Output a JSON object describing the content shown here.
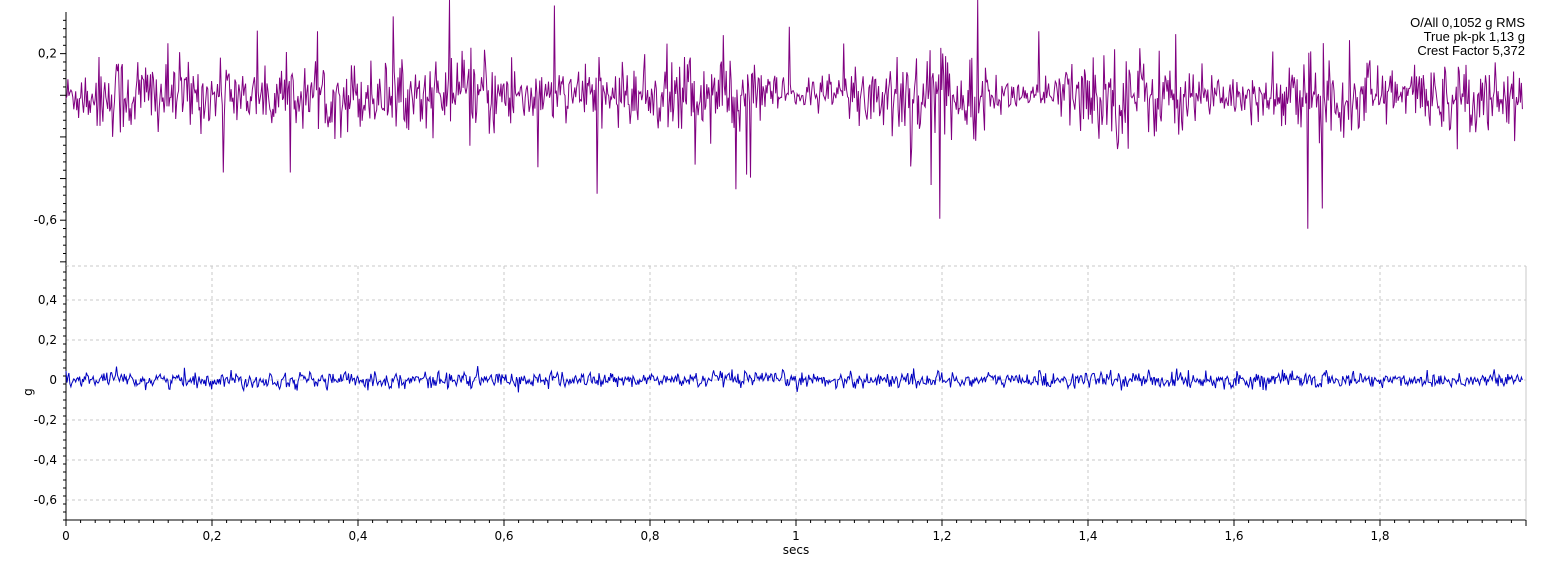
{
  "stats": {
    "overall": "O/All 0,1052 g RMS",
    "peak_to_peak": "True pk-pk 1,13 g",
    "crest_factor": "Crest Factor 5,372"
  },
  "chart_data": [
    {
      "type": "line",
      "panel": "top",
      "title": "",
      "xlabel": "",
      "ylabel": "",
      "ylim": [
        -0.82,
        0.4
      ],
      "yticks": [
        0.2,
        -0.6
      ],
      "ytick_labels": [
        "0,2",
        "-0,6"
      ],
      "grid": false,
      "series": [
        {
          "color": "#800080",
          "mean": -0.0,
          "rms": 0.1052,
          "peak_to_peak": 1.13,
          "crest_factor": 5.372,
          "x_range": [
            0,
            1.995
          ]
        }
      ]
    },
    {
      "type": "line",
      "panel": "bottom",
      "title": "",
      "xlabel": "secs",
      "ylabel": "g",
      "xlim": [
        0,
        2.0
      ],
      "ylim": [
        -0.7,
        0.57
      ],
      "xticks": [
        0,
        0.2,
        0.4,
        0.6,
        0.8,
        1,
        1.2,
        1.4,
        1.6,
        1.8
      ],
      "xtick_labels": [
        "0",
        "0,2",
        "0,4",
        "0,6",
        "0,8",
        "1",
        "1,2",
        "1,4",
        "1,6",
        "1,8"
      ],
      "yticks": [
        0.4,
        0.2,
        0,
        -0.2,
        -0.4,
        -0.6
      ],
      "ytick_labels": [
        "0,4",
        "0,2",
        "0",
        "-0,2",
        "-0,4",
        "-0,6"
      ],
      "grid": true,
      "series": [
        {
          "color": "#0000c0",
          "mean": 0.0,
          "amplitude": 0.03,
          "x_range": [
            0,
            1.995
          ]
        }
      ]
    }
  ]
}
